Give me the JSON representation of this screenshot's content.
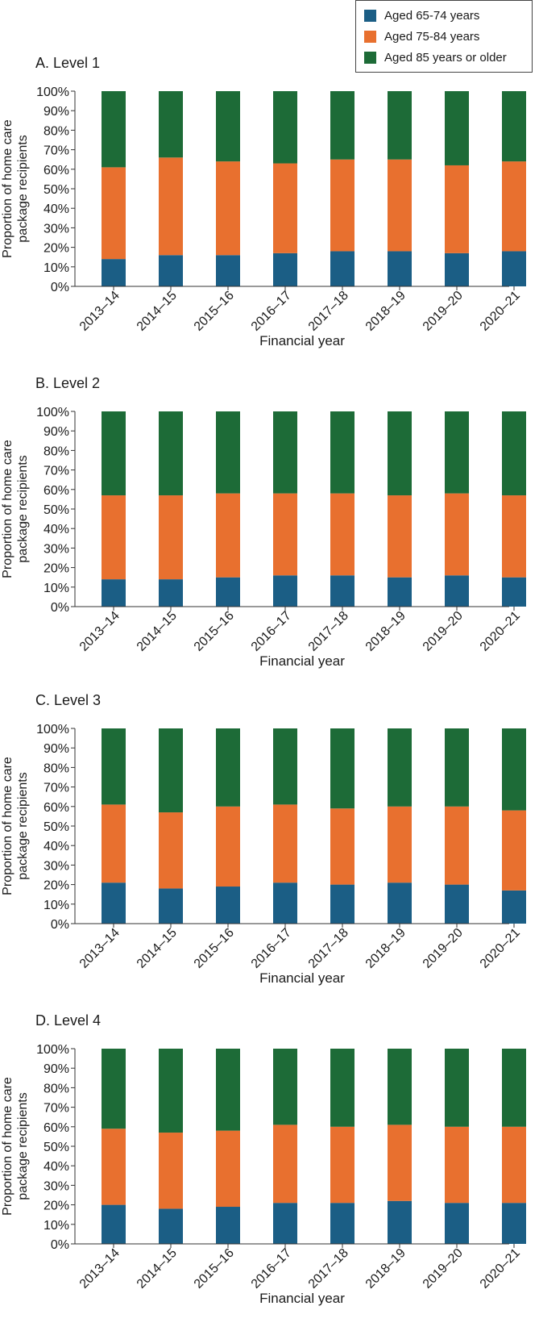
{
  "legend": {
    "items": [
      {
        "label": "Aged 65-74 years",
        "color": "#1b5e85"
      },
      {
        "label": "Aged 75-84 years",
        "color": "#e8702f"
      },
      {
        "label": "Aged 85 years or older",
        "color": "#1d6b37"
      }
    ]
  },
  "chart_data": [
    {
      "type": "bar",
      "stacked": true,
      "title": "A. Level 1",
      "xlabel": "Financial year",
      "ylabel": "Proportion of home care package recipients",
      "ylim": [
        0,
        100
      ],
      "yticks": [
        "0%",
        "10%",
        "20%",
        "30%",
        "40%",
        "50%",
        "60%",
        "70%",
        "80%",
        "90%",
        "100%"
      ],
      "categories": [
        "2013–14",
        "2014–15",
        "2015–16",
        "2016–17",
        "2017–18",
        "2018–19",
        "2019–20",
        "2020–21"
      ],
      "series": [
        {
          "name": "Aged 65-74 years",
          "values": [
            14,
            16,
            16,
            17,
            18,
            18,
            17,
            18
          ]
        },
        {
          "name": "Aged 75-84 years",
          "values": [
            47,
            50,
            48,
            46,
            47,
            47,
            45,
            46
          ]
        },
        {
          "name": "Aged 85 years or older",
          "values": [
            39,
            34,
            36,
            37,
            35,
            35,
            38,
            36
          ]
        }
      ]
    },
    {
      "type": "bar",
      "stacked": true,
      "title": "B. Level 2",
      "xlabel": "Financial year",
      "ylabel": "Proportion of home care package recipients",
      "ylim": [
        0,
        100
      ],
      "yticks": [
        "0%",
        "10%",
        "20%",
        "30%",
        "40%",
        "50%",
        "60%",
        "70%",
        "80%",
        "90%",
        "100%"
      ],
      "categories": [
        "2013–14",
        "2014–15",
        "2015–16",
        "2016–17",
        "2017–18",
        "2018–19",
        "2019–20",
        "2020–21"
      ],
      "series": [
        {
          "name": "Aged 65-74 years",
          "values": [
            14,
            14,
            15,
            16,
            16,
            15,
            16,
            15
          ]
        },
        {
          "name": "Aged 75-84 years",
          "values": [
            43,
            43,
            43,
            42,
            42,
            42,
            42,
            42
          ]
        },
        {
          "name": "Aged 85 years or older",
          "values": [
            43,
            43,
            42,
            42,
            42,
            43,
            42,
            43
          ]
        }
      ]
    },
    {
      "type": "bar",
      "stacked": true,
      "title": "C. Level 3",
      "xlabel": "Financial year",
      "ylabel": "Proportion of home care package recipients",
      "ylim": [
        0,
        100
      ],
      "yticks": [
        "0%",
        "10%",
        "20%",
        "30%",
        "40%",
        "50%",
        "60%",
        "70%",
        "80%",
        "90%",
        "100%"
      ],
      "categories": [
        "2013–14",
        "2014–15",
        "2015–16",
        "2016–17",
        "2017–18",
        "2018–19",
        "2019–20",
        "2020–21"
      ],
      "series": [
        {
          "name": "Aged 65-74 years",
          "values": [
            21,
            18,
            19,
            21,
            20,
            21,
            20,
            17
          ]
        },
        {
          "name": "Aged 75-84 years",
          "values": [
            40,
            39,
            41,
            40,
            39,
            39,
            40,
            41
          ]
        },
        {
          "name": "Aged 85 years or older",
          "values": [
            39,
            43,
            40,
            39,
            41,
            40,
            40,
            42
          ]
        }
      ]
    },
    {
      "type": "bar",
      "stacked": true,
      "title": "D. Level 4",
      "xlabel": "Financial year",
      "ylabel": "Proportion of home care package recipients",
      "ylim": [
        0,
        100
      ],
      "yticks": [
        "0%",
        "10%",
        "20%",
        "30%",
        "40%",
        "50%",
        "60%",
        "70%",
        "80%",
        "90%",
        "100%"
      ],
      "categories": [
        "2013–14",
        "2014–15",
        "2015–16",
        "2016–17",
        "2017–18",
        "2018–19",
        "2019–20",
        "2020–21"
      ],
      "series": [
        {
          "name": "Aged 65-74 years",
          "values": [
            20,
            18,
            19,
            21,
            21,
            22,
            21,
            21
          ]
        },
        {
          "name": "Aged 75-84 years",
          "values": [
            39,
            39,
            39,
            40,
            39,
            39,
            39,
            39
          ]
        },
        {
          "name": "Aged 85 years or older",
          "values": [
            41,
            43,
            42,
            39,
            40,
            39,
            40,
            40
          ]
        }
      ]
    }
  ]
}
